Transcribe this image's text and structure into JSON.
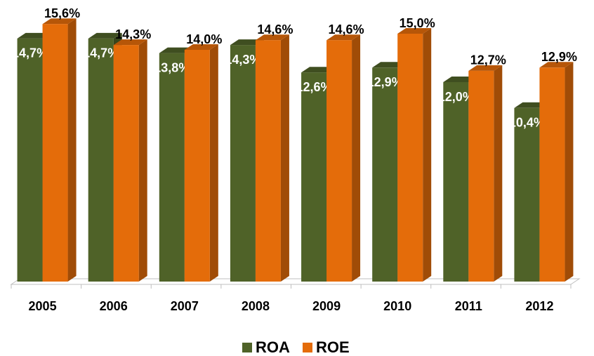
{
  "chart_data": {
    "type": "bar3d",
    "categories": [
      "2005",
      "2006",
      "2007",
      "2008",
      "2009",
      "2010",
      "2011",
      "2012"
    ],
    "series": [
      {
        "name": "ROA",
        "color": "#4f6228",
        "label_color": "#ffffff",
        "values": [
          14.7,
          14.7,
          13.8,
          14.3,
          12.6,
          12.9,
          12.0,
          10.4
        ],
        "value_labels": [
          "14,7%",
          "14,7%",
          "13,8%",
          "14,3%",
          "12,6%",
          "12,9%",
          "12,0%",
          "10,4%"
        ]
      },
      {
        "name": "ROE",
        "color": "#e46c0a",
        "label_color": "#000000",
        "values": [
          15.6,
          14.3,
          14.0,
          14.6,
          14.6,
          15.0,
          12.7,
          12.9
        ],
        "value_labels": [
          "15,6%",
          "14,3%",
          "14,0%",
          "14,6%",
          "14,6%",
          "15,0%",
          "12,7%",
          "12,9%"
        ]
      }
    ],
    "ylim": [
      0,
      16
    ],
    "legend": "bottom"
  }
}
